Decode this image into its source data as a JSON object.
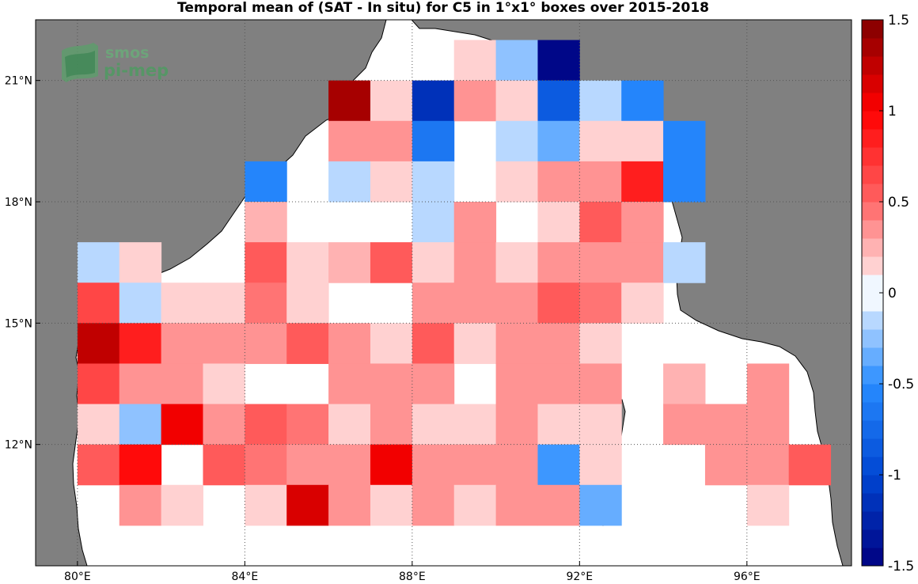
{
  "title": "Temporal mean of (SAT - In situ) for C5 in 1°x1° boxes over 2015-2018",
  "logo": {
    "line1": "smos",
    "line2": "pi-mep"
  },
  "map": {
    "lon_range": [
      79,
      98.5
    ],
    "lat_range": [
      9,
      22.5
    ],
    "x_ticks": [
      {
        "value": 80,
        "label": "80°E"
      },
      {
        "value": 84,
        "label": "84°E"
      },
      {
        "value": 88,
        "label": "88°E"
      },
      {
        "value": 92,
        "label": "92°E"
      },
      {
        "value": 96,
        "label": "96°E"
      }
    ],
    "y_ticks": [
      {
        "value": 12,
        "label": "12°N"
      },
      {
        "value": 15,
        "label": "15°N"
      },
      {
        "value": 18,
        "label": "18°N"
      },
      {
        "value": 21,
        "label": "21°N"
      }
    ],
    "land_color": "#808080",
    "ocean_color": "#ffffff",
    "gridlines": "dotted"
  },
  "colorbar": {
    "range": [
      -1.5,
      1.5
    ],
    "levels": 30,
    "ticks": [
      {
        "value": 1.5,
        "label": "1.5"
      },
      {
        "value": 1,
        "label": "1"
      },
      {
        "value": 0.5,
        "label": "0.5"
      },
      {
        "value": 0,
        "label": "0"
      },
      {
        "value": -0.5,
        "label": "-0.5"
      },
      {
        "value": -1,
        "label": "-1"
      },
      {
        "value": -1.5,
        "label": "-1.5"
      }
    ]
  },
  "chart_data": {
    "type": "heatmap",
    "title": "Temporal mean of (SAT - In situ) for C5 in 1°x1° boxes over 2015-2018",
    "xlabel": "",
    "ylabel": "",
    "cell_size_deg": 1,
    "cells": [
      {
        "lat": 21,
        "lon": 89,
        "v": 0.15
      },
      {
        "lat": 21,
        "lon": 90,
        "v": -0.25
      },
      {
        "lat": 21,
        "lon": 91,
        "v": -1.5
      },
      {
        "lat": 20,
        "lon": 86,
        "v": 1.4
      },
      {
        "lat": 20,
        "lon": 87,
        "v": 0.15
      },
      {
        "lat": 20,
        "lon": 88,
        "v": -1.1
      },
      {
        "lat": 20,
        "lon": 89,
        "v": 0.4
      },
      {
        "lat": 20,
        "lon": 90,
        "v": 0.15
      },
      {
        "lat": 20,
        "lon": 91,
        "v": -0.85
      },
      {
        "lat": 20,
        "lon": 92,
        "v": -0.1
      },
      {
        "lat": 20,
        "lon": 93,
        "v": -0.6
      },
      {
        "lat": 19,
        "lon": 86,
        "v": 0.4
      },
      {
        "lat": 19,
        "lon": 87,
        "v": 0.4
      },
      {
        "lat": 19,
        "lon": 88,
        "v": -0.7
      },
      {
        "lat": 19,
        "lon": 90,
        "v": -0.1
      },
      {
        "lat": 19,
        "lon": 91,
        "v": -0.3
      },
      {
        "lat": 19,
        "lon": 92,
        "v": 0.15
      },
      {
        "lat": 19,
        "lon": 93,
        "v": 0.15
      },
      {
        "lat": 19,
        "lon": 94,
        "v": -0.6
      },
      {
        "lat": 18,
        "lon": 84,
        "v": -0.55
      },
      {
        "lat": 18,
        "lon": 86,
        "v": -0.1
      },
      {
        "lat": 18,
        "lon": 87,
        "v": 0.15
      },
      {
        "lat": 18,
        "lon": 88,
        "v": -0.1
      },
      {
        "lat": 18,
        "lon": 90,
        "v": 0.15
      },
      {
        "lat": 18,
        "lon": 91,
        "v": 0.4
      },
      {
        "lat": 18,
        "lon": 92,
        "v": 0.3
      },
      {
        "lat": 18,
        "lon": 93,
        "v": 0.85
      },
      {
        "lat": 18,
        "lon": 94,
        "v": -0.55
      },
      {
        "lat": 17,
        "lon": 84,
        "v": 0.25
      },
      {
        "lat": 17,
        "lon": 88,
        "v": -0.1
      },
      {
        "lat": 17,
        "lon": 89,
        "v": 0.4
      },
      {
        "lat": 17,
        "lon": 91,
        "v": 0.15
      },
      {
        "lat": 17,
        "lon": 92,
        "v": 0.55
      },
      {
        "lat": 17,
        "lon": 93,
        "v": 0.3
      },
      {
        "lat": 16,
        "lon": 80,
        "v": -0.2
      },
      {
        "lat": 16,
        "lon": 81,
        "v": 0.15
      },
      {
        "lat": 16,
        "lon": 84,
        "v": 0.5
      },
      {
        "lat": 16,
        "lon": 85,
        "v": 0.15
      },
      {
        "lat": 16,
        "lon": 86,
        "v": 0.25
      },
      {
        "lat": 16,
        "lon": 87,
        "v": 0.55
      },
      {
        "lat": 16,
        "lon": 88,
        "v": 0.15
      },
      {
        "lat": 16,
        "lon": 89,
        "v": 0.4
      },
      {
        "lat": 16,
        "lon": 90,
        "v": 0.15
      },
      {
        "lat": 16,
        "lon": 91,
        "v": 0.3
      },
      {
        "lat": 16,
        "lon": 92,
        "v": 0.3
      },
      {
        "lat": 16,
        "lon": 93,
        "v": 0.3
      },
      {
        "lat": 16,
        "lon": 94,
        "v": -0.2
      },
      {
        "lat": 15,
        "lon": 80,
        "v": 0.6
      },
      {
        "lat": 15,
        "lon": 81,
        "v": -0.1
      },
      {
        "lat": 15,
        "lon": 82,
        "v": 0.15
      },
      {
        "lat": 15,
        "lon": 83,
        "v": 0.15
      },
      {
        "lat": 15,
        "lon": 84,
        "v": 0.45
      },
      {
        "lat": 15,
        "lon": 85,
        "v": 0.15
      },
      {
        "lat": 15,
        "lon": 88,
        "v": 0.3
      },
      {
        "lat": 15,
        "lon": 89,
        "v": 0.3
      },
      {
        "lat": 15,
        "lon": 90,
        "v": 0.3
      },
      {
        "lat": 15,
        "lon": 91,
        "v": 0.55
      },
      {
        "lat": 15,
        "lon": 92,
        "v": 0.45
      },
      {
        "lat": 15,
        "lon": 93,
        "v": 0.15
      },
      {
        "lat": 14,
        "lon": 80,
        "v": 1.2
      },
      {
        "lat": 14,
        "lon": 81,
        "v": 0.85
      },
      {
        "lat": 14,
        "lon": 82,
        "v": 0.4
      },
      {
        "lat": 14,
        "lon": 83,
        "v": 0.4
      },
      {
        "lat": 14,
        "lon": 84,
        "v": 0.3
      },
      {
        "lat": 14,
        "lon": 85,
        "v": 0.55
      },
      {
        "lat": 14,
        "lon": 86,
        "v": 0.4
      },
      {
        "lat": 14,
        "lon": 87,
        "v": 0.15
      },
      {
        "lat": 14,
        "lon": 88,
        "v": 0.55
      },
      {
        "lat": 14,
        "lon": 89,
        "v": 0.15
      },
      {
        "lat": 14,
        "lon": 90,
        "v": 0.3
      },
      {
        "lat": 14,
        "lon": 91,
        "v": 0.3
      },
      {
        "lat": 14,
        "lon": 92,
        "v": 0.15
      },
      {
        "lat": 13,
        "lon": 80,
        "v": 0.65
      },
      {
        "lat": 13,
        "lon": 81,
        "v": 0.4
      },
      {
        "lat": 13,
        "lon": 82,
        "v": 0.4
      },
      {
        "lat": 13,
        "lon": 83,
        "v": 0.15
      },
      {
        "lat": 13,
        "lon": 86,
        "v": 0.3
      },
      {
        "lat": 13,
        "lon": 87,
        "v": 0.3
      },
      {
        "lat": 13,
        "lon": 88,
        "v": 0.3
      },
      {
        "lat": 13,
        "lon": 90,
        "v": 0.4
      },
      {
        "lat": 13,
        "lon": 91,
        "v": 0.3
      },
      {
        "lat": 13,
        "lon": 92,
        "v": 0.3
      },
      {
        "lat": 13,
        "lon": 94,
        "v": 0.25
      },
      {
        "lat": 13,
        "lon": 96,
        "v": 0.4
      },
      {
        "lat": 12,
        "lon": 80,
        "v": 0.15
      },
      {
        "lat": 12,
        "lon": 81,
        "v": -0.25
      },
      {
        "lat": 12,
        "lon": 82,
        "v": 1.0
      },
      {
        "lat": 12,
        "lon": 83,
        "v": 0.3
      },
      {
        "lat": 12,
        "lon": 84,
        "v": 0.55
      },
      {
        "lat": 12,
        "lon": 85,
        "v": 0.45
      },
      {
        "lat": 12,
        "lon": 86,
        "v": 0.15
      },
      {
        "lat": 12,
        "lon": 87,
        "v": 0.3
      },
      {
        "lat": 12,
        "lon": 88,
        "v": 0.15
      },
      {
        "lat": 12,
        "lon": 89,
        "v": 0.15
      },
      {
        "lat": 12,
        "lon": 90,
        "v": 0.3
      },
      {
        "lat": 12,
        "lon": 91,
        "v": 0.15
      },
      {
        "lat": 12,
        "lon": 92,
        "v": 0.15
      },
      {
        "lat": 12,
        "lon": 94,
        "v": 0.4
      },
      {
        "lat": 12,
        "lon": 95,
        "v": 0.4
      },
      {
        "lat": 12,
        "lon": 96,
        "v": 0.3
      },
      {
        "lat": 11,
        "lon": 80,
        "v": 0.55
      },
      {
        "lat": 11,
        "lon": 81,
        "v": 0.95
      },
      {
        "lat": 11,
        "lon": 83,
        "v": 0.55
      },
      {
        "lat": 11,
        "lon": 84,
        "v": 0.45
      },
      {
        "lat": 11,
        "lon": 85,
        "v": 0.3
      },
      {
        "lat": 11,
        "lon": 86,
        "v": 0.4
      },
      {
        "lat": 11,
        "lon": 87,
        "v": 1.0
      },
      {
        "lat": 11,
        "lon": 88,
        "v": 0.3
      },
      {
        "lat": 11,
        "lon": 89,
        "v": 0.3
      },
      {
        "lat": 11,
        "lon": 90,
        "v": 0.3
      },
      {
        "lat": 11,
        "lon": 91,
        "v": -0.5
      },
      {
        "lat": 11,
        "lon": 92,
        "v": 0.15
      },
      {
        "lat": 11,
        "lon": 95,
        "v": 0.4
      },
      {
        "lat": 11,
        "lon": 96,
        "v": 0.4
      },
      {
        "lat": 11,
        "lon": 97,
        "v": 0.55
      },
      {
        "lat": 10,
        "lon": 81,
        "v": 0.4
      },
      {
        "lat": 10,
        "lon": 82,
        "v": 0.15
      },
      {
        "lat": 10,
        "lon": 84,
        "v": 0.15
      },
      {
        "lat": 10,
        "lon": 85,
        "v": 1.15
      },
      {
        "lat": 10,
        "lon": 86,
        "v": 0.3
      },
      {
        "lat": 10,
        "lon": 87,
        "v": 0.15
      },
      {
        "lat": 10,
        "lon": 88,
        "v": 0.3
      },
      {
        "lat": 10,
        "lon": 89,
        "v": 0.15
      },
      {
        "lat": 10,
        "lon": 90,
        "v": 0.3
      },
      {
        "lat": 10,
        "lon": 91,
        "v": 0.3
      },
      {
        "lat": 10,
        "lon": 92,
        "v": -0.3
      },
      {
        "lat": 10,
        "lon": 96,
        "v": 0.15
      }
    ]
  }
}
